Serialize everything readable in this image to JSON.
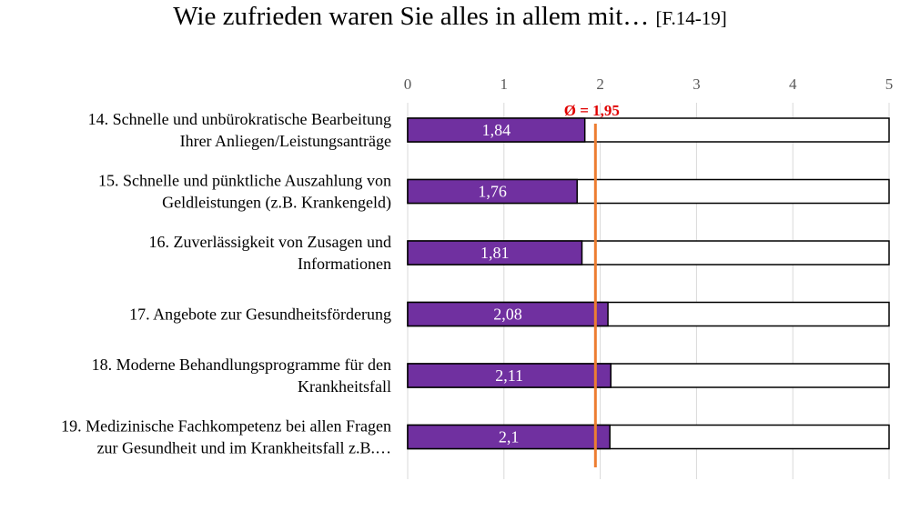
{
  "title": "Wie zufrieden waren Sie alles in allem mit…",
  "title_suffix": "[F.14-19]",
  "chart_data": {
    "type": "bar",
    "orientation": "horizontal",
    "title": "Wie zufrieden waren Sie alles in allem mit… [F.14-19]",
    "xlabel": "",
    "ylabel": "",
    "xlim": [
      0,
      5
    ],
    "ticks": [
      "0",
      "1",
      "2",
      "3",
      "4",
      "5"
    ],
    "grid": true,
    "categories": [
      [
        "14. Schnelle und unbürokratische Bearbeitung",
        "Ihrer Anliegen/Leistungsanträge"
      ],
      [
        "15. Schnelle und pünktliche Auszahlung von",
        "Geldleistungen (z.B. Krankengeld)"
      ],
      [
        "16. Zuverlässigkeit von Zusagen und",
        "Informationen"
      ],
      [
        "17. Angebote zur Gesundheitsförderung"
      ],
      [
        "18. Moderne Behandlungsprogramme für den",
        "Krankheitsfall"
      ],
      [
        "19. Medizinische Fachkompetenz bei allen Fragen",
        "zur Gesundheit und im Krankheitsfall z.B.…"
      ]
    ],
    "values": [
      1.84,
      1.76,
      1.81,
      2.08,
      2.11,
      2.1
    ],
    "value_labels": [
      "1,84",
      "1,76",
      "1,81",
      "2,08",
      "2,11",
      "2,1"
    ],
    "max": 5,
    "average": 1.95,
    "average_label": "Ø = 1,95",
    "colors": {
      "bar": "#7030a0",
      "average_line": "#ed7d31",
      "average_text": "#e00000",
      "grid": "#d9d9d9"
    }
  }
}
